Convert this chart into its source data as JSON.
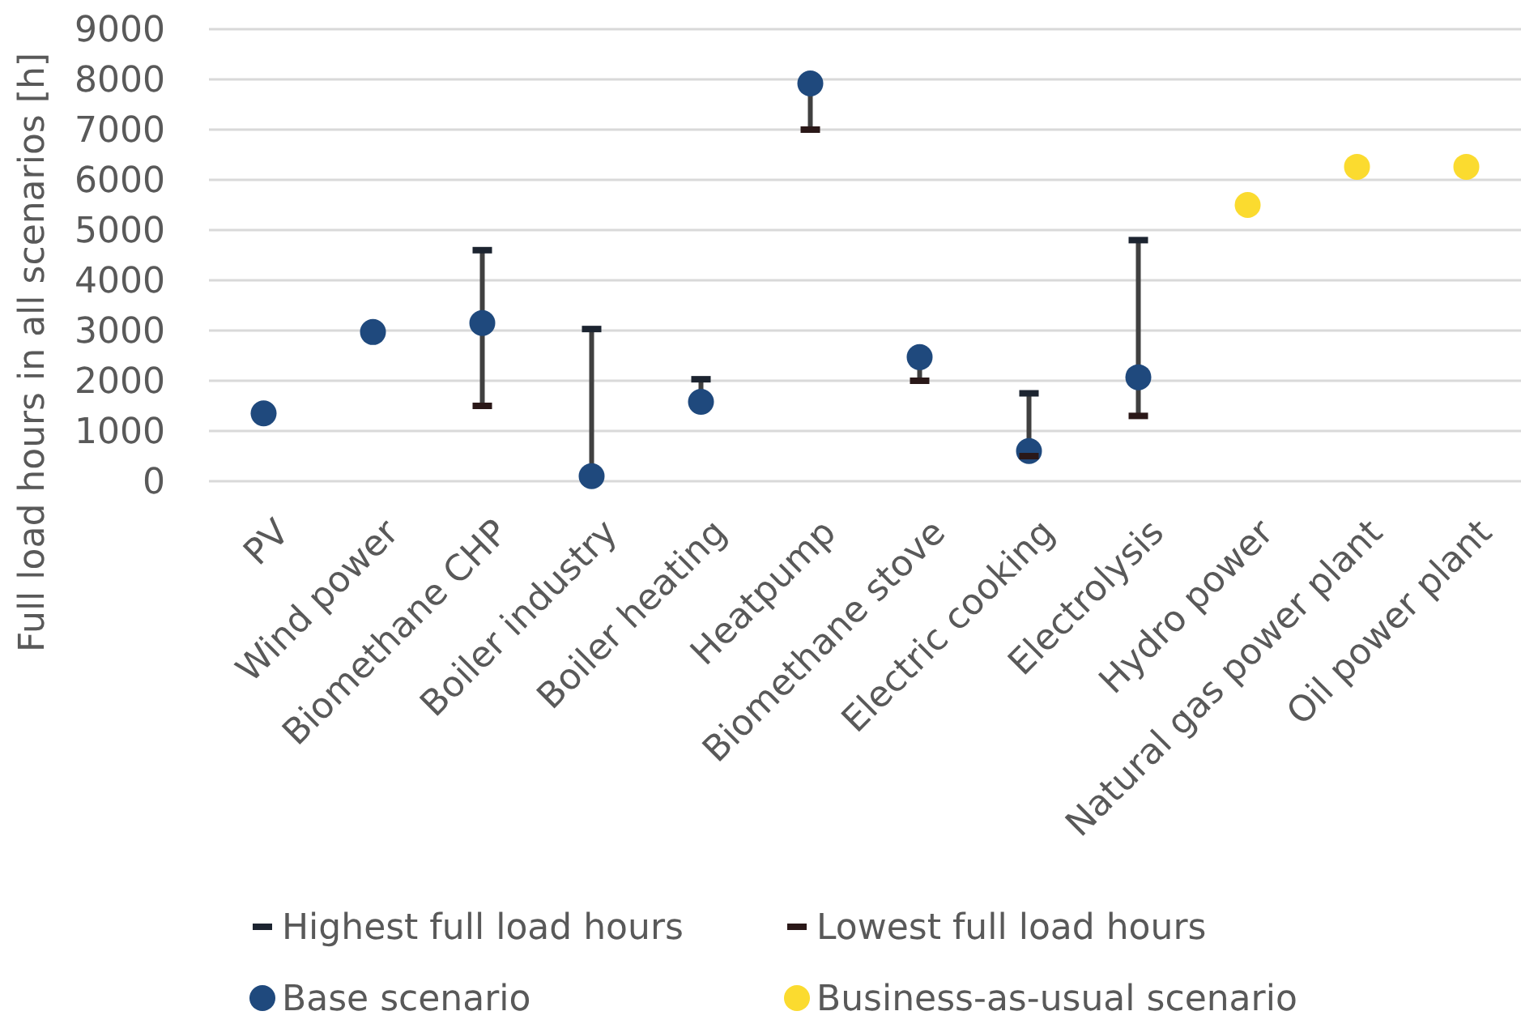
{
  "chart_data": {
    "type": "scatter",
    "ylabel": "Full load hours in all scenarios [h]",
    "categories": [
      "PV",
      "Wind power",
      "Biomethane CHP",
      "Boiler industry",
      "Boiler heating",
      "Heatpump",
      "Biomethane stove",
      "Electric cooking",
      "Electrolysis",
      "Hydro power",
      "Natural gas power plant",
      "Oil power plant"
    ],
    "series": [
      {
        "name": "Highest full load hours",
        "color": "#1c2430",
        "values": [
          null,
          null,
          4600,
          3030,
          2030,
          null,
          null,
          1750,
          4800,
          null,
          null,
          null
        ]
      },
      {
        "name": "Lowest full load hours",
        "color": "#2a1818",
        "values": [
          null,
          null,
          1500,
          null,
          null,
          7000,
          2000,
          500,
          1300,
          null,
          null,
          null
        ]
      },
      {
        "name": "Base scenario",
        "marker": "circle",
        "color": "#1f497d",
        "values": [
          1350,
          2970,
          3150,
          100,
          1580,
          7920,
          2470,
          600,
          2070,
          null,
          null,
          null
        ]
      },
      {
        "name": "Business-as-usual scenario",
        "marker": "circle",
        "color": "#fbdb2f",
        "values": [
          null,
          null,
          null,
          null,
          null,
          null,
          null,
          null,
          null,
          5500,
          6260,
          6260
        ]
      }
    ],
    "ylim": [
      0,
      9000
    ],
    "yticks": [
      0,
      1000,
      2000,
      3000,
      4000,
      5000,
      6000,
      7000,
      8000,
      9000
    ],
    "grid": "y",
    "legend": "bottom"
  }
}
